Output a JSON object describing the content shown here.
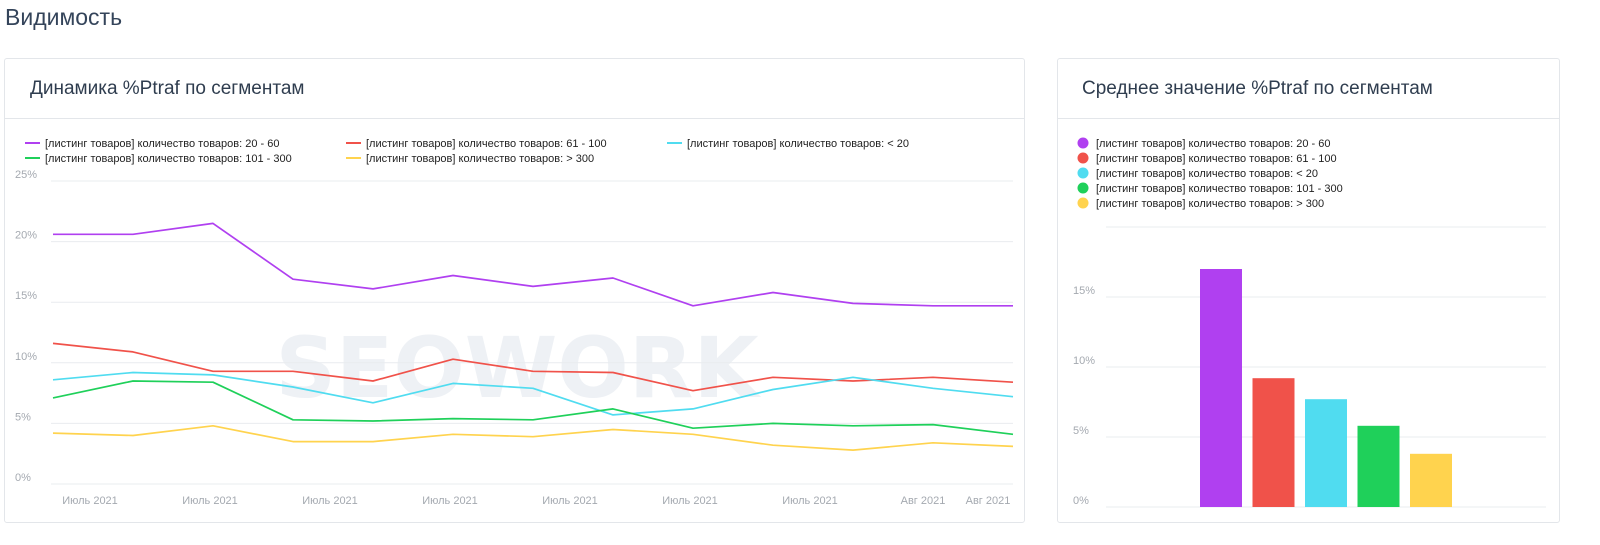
{
  "page": {
    "section_title": "Видимость",
    "watermark": "SEOWORK"
  },
  "colors": {
    "purple": "#b040f0",
    "red": "#f0524a",
    "cyan": "#50dcf0",
    "green": "#1fd05a",
    "yellow": "#ffd34e"
  },
  "chart_data": [
    {
      "type": "line",
      "title": "Динамика %Ptraf по сегментам",
      "x_tick_labels": [
        "Июль 2021",
        "Июль 2021",
        "Июль 2021",
        "Июль 2021",
        "Июль 2021",
        "Июль 2021",
        "Июль 2021",
        "Авг 2021",
        "Авг 2021"
      ],
      "ylim": [
        0,
        25
      ],
      "y_ticks": [
        0,
        5,
        10,
        15,
        20,
        25
      ],
      "y_tick_labels": [
        "0%",
        "5%",
        "10%",
        "15%",
        "20%",
        "25%"
      ],
      "legend_position": "top-left",
      "grid": true,
      "series": [
        {
          "name": "[листинг товаров] количество товаров: 20 - 60",
          "color": "#b040f0",
          "values": [
            20.6,
            20.6,
            21.5,
            16.9,
            16.1,
            17.2,
            16.3,
            17.0,
            14.7,
            15.8,
            14.9,
            14.7,
            14.7
          ]
        },
        {
          "name": "[листинг товаров] количество товаров: 61 - 100",
          "color": "#f0524a",
          "values": [
            11.6,
            10.9,
            9.3,
            9.3,
            8.5,
            10.3,
            9.3,
            9.2,
            7.7,
            8.8,
            8.5,
            8.8,
            8.4
          ]
        },
        {
          "name": "[листинг товаров] количество товаров: < 20",
          "color": "#50dcf0",
          "values": [
            8.6,
            9.2,
            9.0,
            8.0,
            6.7,
            8.3,
            7.9,
            5.7,
            6.2,
            7.8,
            8.8,
            7.9,
            7.2
          ]
        },
        {
          "name": "[листинг товаров] количество товаров: 101 - 300",
          "color": "#1fd05a",
          "values": [
            7.1,
            8.5,
            8.4,
            5.3,
            5.2,
            5.4,
            5.3,
            6.2,
            4.6,
            5.0,
            4.8,
            4.9,
            4.1
          ]
        },
        {
          "name": "[листинг товаров] количество товаров: > 300",
          "color": "#ffd34e",
          "values": [
            4.2,
            4.0,
            4.8,
            3.5,
            3.5,
            4.1,
            3.9,
            4.5,
            4.1,
            3.2,
            2.8,
            3.4,
            3.1
          ]
        }
      ]
    },
    {
      "type": "bar",
      "title": "Среднее значение %Ptraf по сегментам",
      "ylim": [
        0,
        20
      ],
      "y_ticks": [
        0,
        5,
        10,
        15
      ],
      "y_tick_labels": [
        "0%",
        "5%",
        "10%",
        "15%"
      ],
      "legend_position": "top-left",
      "grid": true,
      "categories": [
        "[листинг товаров] количество товаров: 20 - 60",
        "[листинг товаров] количество товаров: 61 - 100",
        "[листинг товаров] количество товаров: < 20",
        "[листинг товаров] количество товаров: 101 - 300",
        "[листинг товаров] количество товаров: > 300"
      ],
      "values": [
        17.0,
        9.2,
        7.7,
        5.8,
        3.8
      ],
      "colors": [
        "#b040f0",
        "#f0524a",
        "#50dcf0",
        "#1fd05a",
        "#ffd34e"
      ]
    }
  ]
}
